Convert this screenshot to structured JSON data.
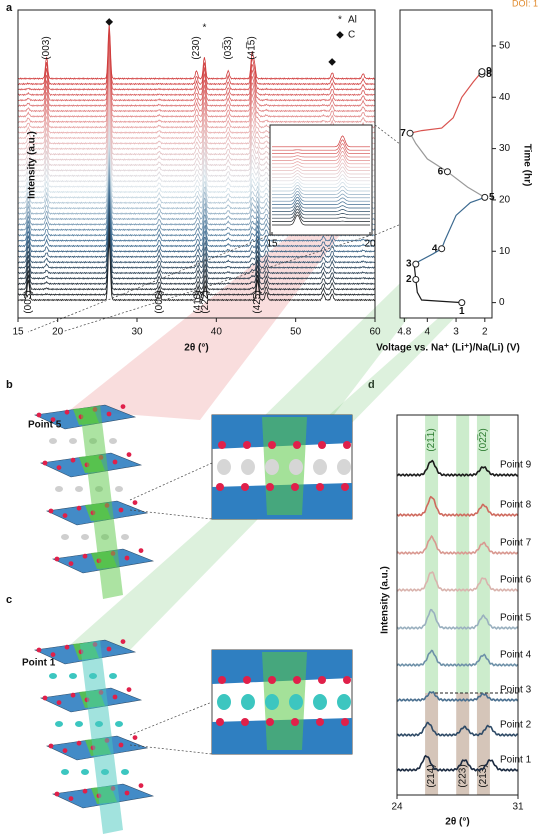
{
  "figure": {
    "doi": "DOI: 1",
    "panel_labels": [
      "a",
      "b",
      "c",
      "d"
    ]
  },
  "structures": [
    {
      "label": "Point 5"
    },
    {
      "label": "Point 1"
    }
  ],
  "chart_data": [
    {
      "type": "waterfall",
      "xlabel": "2θ (°)",
      "ylabel": "Intensity (a.u.)",
      "xlim": [
        15,
        60
      ],
      "xticks": [
        15,
        20,
        30,
        40,
        50,
        60
      ],
      "gradient": [
        "#1a1a1a",
        "#3c6a90",
        "#dce8ee",
        "#e9b1b1",
        "#d03a3a"
      ],
      "series": [
        {
          "peaks": [
            16.3,
            26.5,
            32.8,
            37.7,
            38.6,
            45.2,
            46.3,
            53.5,
            54.6
          ],
          "heights": [
            20,
            60,
            8,
            8,
            14,
            20,
            8,
            6,
            6
          ]
        },
        {
          "peaks": [
            18.6,
            26.5,
            37.5,
            38.5,
            41.5,
            44.5,
            44.8,
            54.6,
            58.5
          ],
          "heights": [
            22,
            55,
            8,
            22,
            8,
            25,
            15,
            6,
            5
          ]
        }
      ],
      "markers": [
        {
          "symbol": "◆",
          "x": 26.5
        },
        {
          "symbol": "*",
          "x": 38.5
        },
        {
          "symbol": "◆",
          "x": 54.6
        }
      ],
      "legend": [
        {
          "symbol": "*",
          "label": "Al"
        },
        {
          "symbol": "◆",
          "label": "C"
        }
      ],
      "top_labels": [
        {
          "label": "(003)",
          "x": 18.6
        },
        {
          "label": "(230)",
          "x": 37.5
        },
        {
          "label": "(03̅3)",
          "x": 41.5
        },
        {
          "label": "(41̅5)",
          "x": 44.5
        }
      ],
      "bottom_labels": [
        {
          "label": "(003)",
          "x": 16.3
        },
        {
          "label": "(006)",
          "x": 32.8
        },
        {
          "label": "(410)",
          "x": 37.7
        },
        {
          "label": "(22̅2)",
          "x": 38.6
        },
        {
          "label": "(425)",
          "x": 45.2
        }
      ],
      "inset": {
        "xlim": [
          15,
          20
        ],
        "xticks": [
          15,
          20
        ]
      }
    },
    {
      "type": "line",
      "xlabel": "Voltage vs. Na⁺ (Li⁺)/Na(Li) (V)",
      "ylabel": "Time (hr)",
      "xlim": [
        4.95,
        1.75
      ],
      "xticks": [
        4.8,
        4,
        3,
        2
      ],
      "ylim": [
        -3,
        57
      ],
      "yticks": [
        0,
        10,
        20,
        30,
        40,
        50
      ],
      "series": [
        {
          "color": "#1a1a1a",
          "x": [
            2.8,
            4.2,
            4.35,
            4.4,
            4.45
          ],
          "y": [
            0,
            0.5,
            2,
            4.5,
            7
          ]
        },
        {
          "color": "#3c6a90",
          "x": [
            4.45,
            4.3,
            3.8,
            3.5,
            3.4,
            3.0,
            2.5,
            2.0
          ],
          "y": [
            7,
            8,
            9.5,
            10.5,
            12,
            17,
            19.5,
            20.5
          ]
        },
        {
          "color": "#9a9a9a",
          "x": [
            2.0,
            2.6,
            3.3,
            4.0,
            4.4,
            4.6
          ],
          "y": [
            20.5,
            22.5,
            25.5,
            28,
            31,
            33
          ]
        },
        {
          "color": "#d9534f",
          "x": [
            4.6,
            4.2,
            3.5,
            3.1,
            2.8,
            2.4,
            2.1
          ],
          "y": [
            33,
            33.5,
            34,
            36,
            40,
            43,
            45
          ]
        }
      ],
      "points": {
        "labels": [
          "1",
          "2",
          "3",
          "4",
          "5",
          "6",
          "7",
          "8",
          "9"
        ],
        "x": [
          2.8,
          4.4,
          4.4,
          3.5,
          2.0,
          3.3,
          4.6,
          2.1,
          2.1
        ],
        "y": [
          0,
          4.5,
          7.5,
          10.5,
          20.5,
          25.5,
          33,
          44.5,
          45
        ]
      }
    },
    {
      "type": "stacked-line",
      "xlabel": "2θ (°)",
      "ylabel": "Intensity (a.u.)",
      "xlim": [
        24,
        31
      ],
      "xticks": [
        24,
        31
      ],
      "top_bands": {
        "x": [
          26.0,
          27.8,
          29.0
        ],
        "labels": [
          "(21̅1)",
          null,
          "(02̅2)"
        ]
      },
      "bottom_bands": {
        "x": [
          26.0,
          27.8,
          29.0
        ],
        "labels": [
          "(214)",
          "(223)",
          "(21̅3)"
        ]
      },
      "series": [
        {
          "name": "Point 1",
          "color": "#1b2a40",
          "peaks": [
            25.7,
            27.9,
            29.4
          ],
          "heights": [
            14,
            10,
            10
          ]
        },
        {
          "name": "Point 2",
          "color": "#2e4a66",
          "peaks": [
            25.8,
            27.9,
            29.3
          ],
          "heights": [
            12,
            8,
            9
          ]
        },
        {
          "name": "Point 3",
          "color": "#4a6f8f",
          "peaks": [
            26.0,
            29.0
          ],
          "heights": [
            8,
            6
          ]
        },
        {
          "name": "Point 4",
          "color": "#6d90a8",
          "peaks": [
            26.0,
            29.0
          ],
          "heights": [
            14,
            10
          ]
        },
        {
          "name": "Point 5",
          "color": "#9ab0bf",
          "peaks": [
            26.0,
            29.0
          ],
          "heights": [
            18,
            12
          ]
        },
        {
          "name": "Point 6",
          "color": "#d9b3ad",
          "peaks": [
            26.0,
            29.0
          ],
          "heights": [
            18,
            12
          ]
        },
        {
          "name": "Point 7",
          "color": "#d99890",
          "peaks": [
            26.0,
            29.0
          ],
          "heights": [
            16,
            10
          ]
        },
        {
          "name": "Point 8",
          "color": "#cf6a5e",
          "peaks": [
            26.0,
            29.0
          ],
          "heights": [
            18,
            10
          ]
        },
        {
          "name": "Point 9",
          "color": "#1a1a1a",
          "peaks": [
            26.0,
            29.0
          ],
          "heights": [
            14,
            8
          ]
        }
      ]
    }
  ]
}
